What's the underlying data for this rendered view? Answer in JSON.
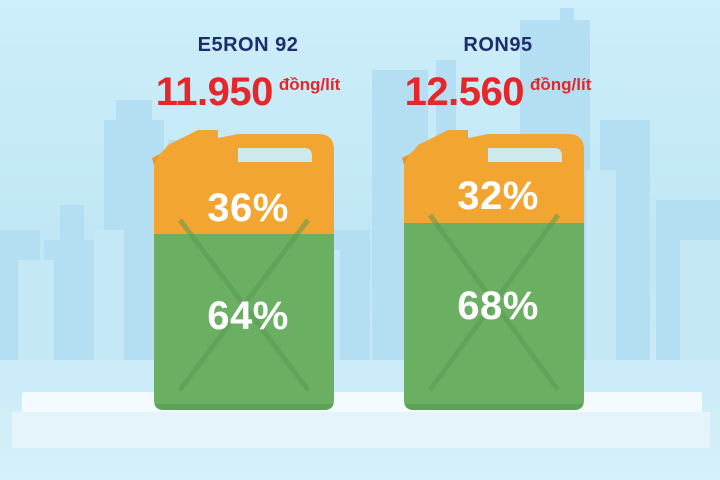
{
  "products": [
    {
      "name": "E5RON 92",
      "price": "11.950",
      "unit": "đồng/lít",
      "top_share": "36%",
      "bottom_share": "64%"
    },
    {
      "name": "RON95",
      "price": "12.560",
      "unit": "đồng/lít",
      "top_share": "32%",
      "bottom_share": "68%"
    }
  ],
  "colors": {
    "top_fill": "#f2a531",
    "bottom_fill": "#6aaf62",
    "price_text": "#e5262a",
    "name_text": "#1e2d6b"
  }
}
